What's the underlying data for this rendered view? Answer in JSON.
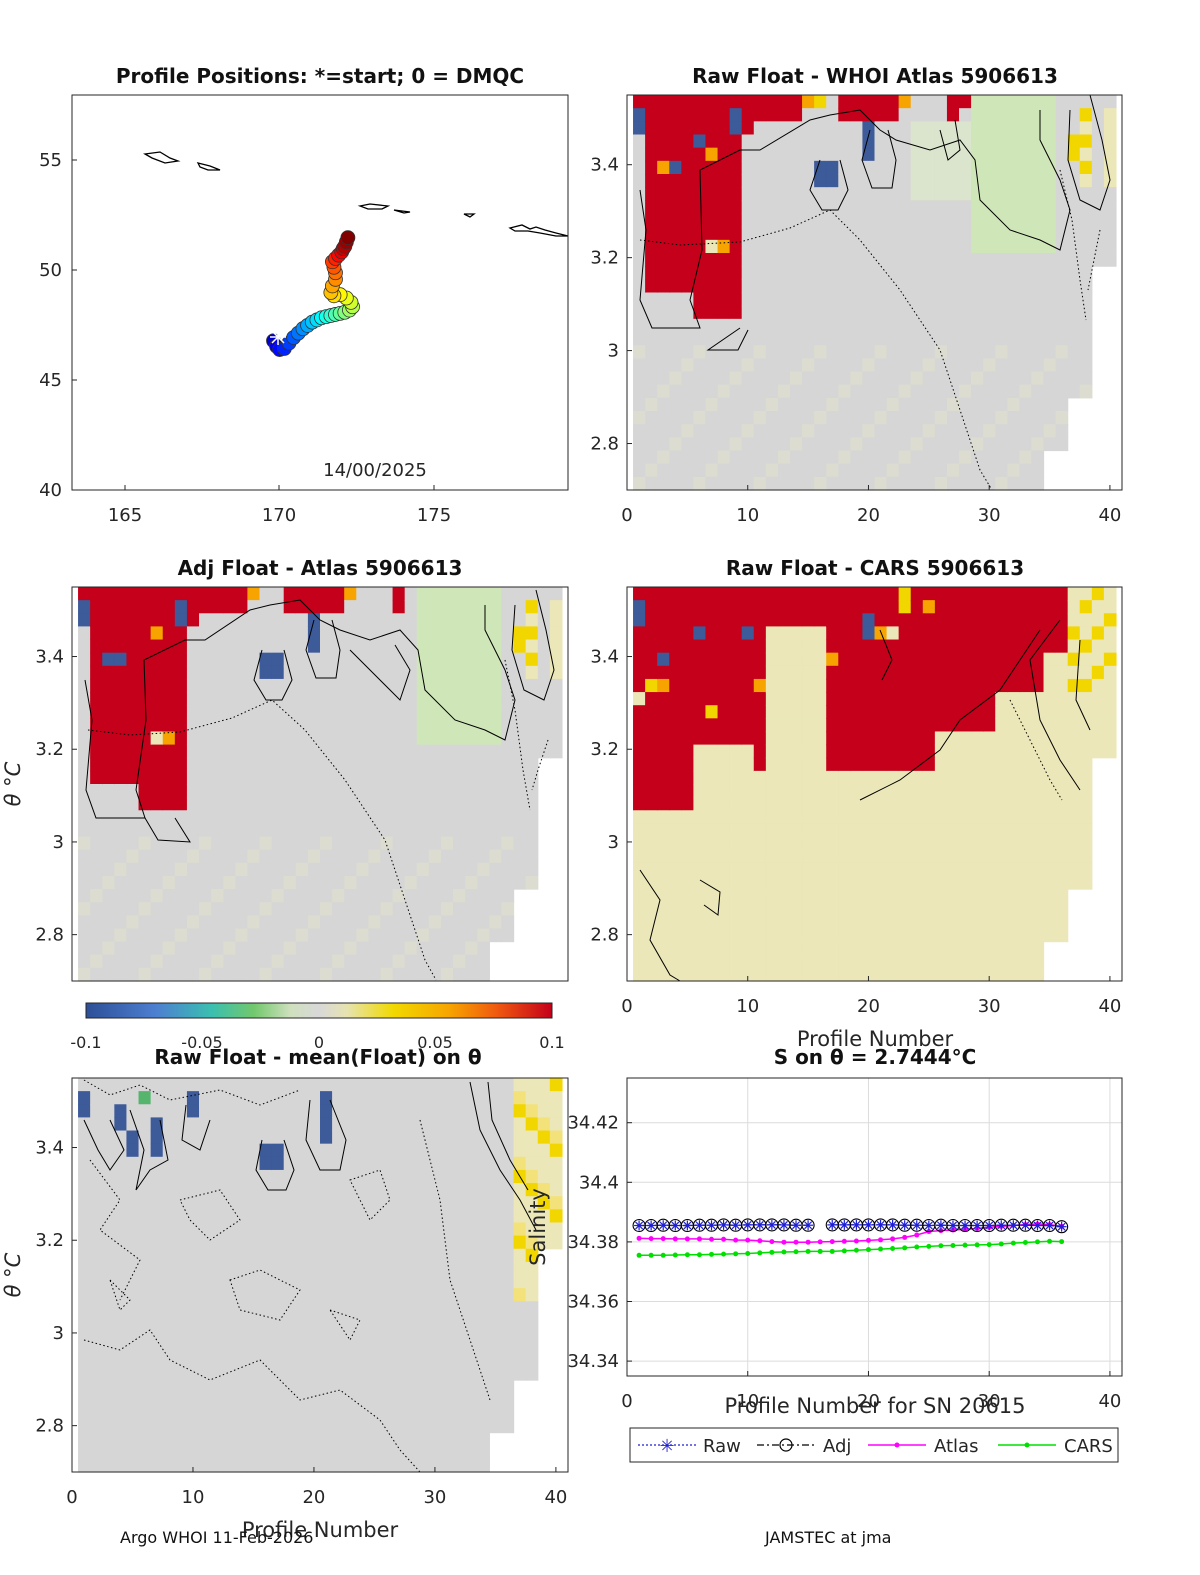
{
  "float_id": "5906613",
  "footer": {
    "left": "Argo WHOI 11-Feb-2026",
    "right": "JAMSTEC at jma"
  },
  "colorbar": {
    "ticks": [
      "-0.1",
      "-0.05",
      "0",
      "0.05",
      "0.1"
    ],
    "range": [
      -0.1,
      0.1
    ]
  },
  "panels": {
    "map": {
      "title": "Profile Positions: *=start; 0 = DMQC",
      "date_label": "14/00/2025",
      "xticks": [
        "165",
        "170",
        "175"
      ],
      "yticks": [
        "40",
        "45",
        "50",
        "55"
      ]
    },
    "whoi": {
      "title": "Raw Float - WHOI Atlas  5906613",
      "ylabel": "θ °C"
    },
    "adj": {
      "title": "Adj Float - Atlas  5906613",
      "ylabel": "θ °C"
    },
    "cars": {
      "title": "Raw Float - CARS  5906613",
      "ylabel": "θ °C",
      "xlabel": "Profile Number"
    },
    "mean": {
      "title": "Raw Float - mean(Float) on θ",
      "ylabel": "θ °C",
      "xlabel": "Profile Number"
    },
    "salinity": {
      "title": "S on θ = 2.7444°C",
      "ylabel": "Salinity",
      "xlabel": "Profile Number for SN 20615"
    }
  },
  "theta_yticks": [
    "2.8",
    "3",
    "3.2",
    "3.4"
  ],
  "profile_xticks": [
    "0",
    "10",
    "20",
    "30",
    "40"
  ],
  "chart_data": [
    {
      "type": "scatter",
      "name": "profile_positions",
      "title": "Profile Positions: *=start; 0 = DMQC",
      "xlim": [
        163.5,
        179.5
      ],
      "ylim": [
        40,
        58
      ],
      "x": [
        170.0,
        170.1,
        170.2,
        170.35,
        170.5,
        170.65,
        170.8,
        170.95,
        171.1,
        171.25,
        171.4,
        171.55,
        171.7,
        171.85,
        172.0,
        172.15,
        172.3,
        172.45,
        172.55,
        172.5,
        172.35,
        172.15,
        171.95,
        171.85,
        171.9,
        172.0,
        172.0,
        171.95,
        171.9,
        172.0,
        172.1,
        172.2,
        172.25,
        172.3,
        172.35,
        172.4
      ],
      "y": [
        46.8,
        46.55,
        46.4,
        46.45,
        46.7,
        46.95,
        47.15,
        47.35,
        47.5,
        47.65,
        47.75,
        47.85,
        47.9,
        47.95,
        48.0,
        48.05,
        48.1,
        48.2,
        48.35,
        48.55,
        48.75,
        48.9,
        48.85,
        49.0,
        49.3,
        49.6,
        49.9,
        50.15,
        50.4,
        50.55,
        50.7,
        50.85,
        51.0,
        51.1,
        51.3,
        51.5
      ],
      "start_marker": "*"
    },
    {
      "type": "line",
      "name": "salinity_on_theta",
      "title": "S on θ = 2.7444°C",
      "xlabel": "Profile Number for SN 20615",
      "ylabel": "Salinity",
      "xlim": [
        0,
        41
      ],
      "ylim": [
        34.335,
        34.435
      ],
      "xticks": [
        0,
        10,
        20,
        30,
        40
      ],
      "yticks": [
        34.34,
        34.36,
        34.38,
        34.4,
        34.42
      ],
      "ytick_labels": [
        "34.34",
        "34.36",
        "34.38",
        "34.4",
        "34.42"
      ],
      "legend_location": "below",
      "x": [
        1,
        2,
        3,
        4,
        5,
        6,
        7,
        8,
        9,
        10,
        11,
        12,
        13,
        14,
        15,
        16,
        17,
        18,
        19,
        20,
        21,
        22,
        23,
        24,
        25,
        26,
        27,
        28,
        29,
        30,
        31,
        32,
        33,
        34,
        35,
        36
      ],
      "series": [
        {
          "name": "Raw",
          "color": "#1f1fd6",
          "values": [
            34.3855,
            34.3855,
            34.3856,
            34.3855,
            34.3855,
            34.3856,
            34.3856,
            34.3857,
            34.3856,
            34.3857,
            34.3857,
            34.3857,
            34.3857,
            34.3856,
            34.3856,
            null,
            34.3857,
            34.3857,
            34.3857,
            34.3857,
            34.3857,
            34.3857,
            34.3856,
            34.3856,
            34.3855,
            34.3856,
            34.3855,
            34.3855,
            34.3855,
            34.3855,
            34.3856,
            34.3856,
            34.3856,
            34.3855,
            34.3855,
            34.3851
          ]
        },
        {
          "name": "Adj",
          "color": "#000000",
          "values": [
            34.3855,
            34.3855,
            34.3856,
            34.3855,
            34.3855,
            34.3856,
            34.3856,
            34.3857,
            34.3856,
            34.3857,
            34.3857,
            34.3857,
            34.3857,
            34.3856,
            34.3856,
            null,
            34.3857,
            34.3857,
            34.3857,
            34.3857,
            34.3857,
            34.3857,
            34.3856,
            34.3856,
            34.3855,
            34.3856,
            34.3855,
            34.3855,
            34.3855,
            34.3855,
            34.3856,
            34.3856,
            34.3856,
            34.3855,
            34.3855,
            34.3851
          ]
        },
        {
          "name": "Atlas",
          "color": "#ff00ff",
          "values": [
            34.3812,
            34.3811,
            34.3811,
            34.381,
            34.381,
            34.381,
            34.3809,
            34.3809,
            34.3806,
            34.3806,
            34.3804,
            34.3801,
            34.3799,
            34.3799,
            34.3799,
            34.38,
            34.3801,
            34.3802,
            34.3803,
            34.3805,
            34.3807,
            34.381,
            34.3815,
            34.3823,
            34.3835,
            34.3838,
            34.384,
            34.3842,
            34.3845,
            34.3849,
            34.3852,
            34.3855,
            34.3858,
            34.386,
            34.3858,
            34.3852
          ]
        },
        {
          "name": "CARS",
          "color": "#00e000",
          "values": [
            34.3755,
            34.3755,
            34.3755,
            34.3756,
            34.3757,
            34.3757,
            34.3758,
            34.3759,
            34.376,
            34.3761,
            34.3763,
            34.3765,
            34.3766,
            34.3767,
            34.3768,
            34.3768,
            34.3768,
            34.377,
            34.3772,
            34.3774,
            34.3776,
            34.3778,
            34.378,
            34.3783,
            34.3785,
            34.3787,
            34.3788,
            34.3789,
            34.379,
            34.3791,
            34.3793,
            34.3796,
            34.3798,
            34.38,
            34.3802,
            34.3801
          ]
        }
      ]
    },
    {
      "type": "heatmap",
      "name": "theta_anomaly_panels",
      "xlim": [
        0,
        41
      ],
      "ylim": [
        2.7,
        3.55
      ],
      "colorbar_range": [
        -0.1,
        0.1
      ],
      "description_units": "salinity difference"
    }
  ]
}
